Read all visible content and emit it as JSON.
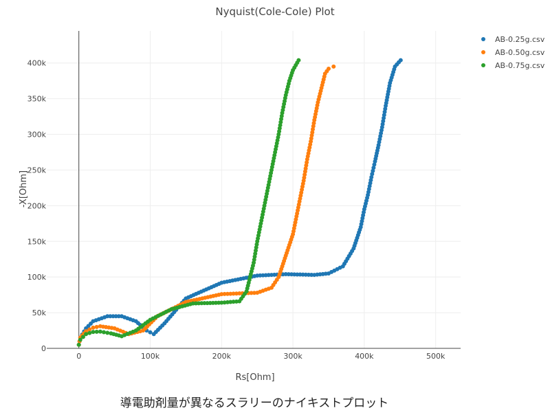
{
  "caption": "導電助剤量が異なるスラリーのナイキストプロット",
  "chart_data": {
    "type": "scatter",
    "title": "Nyquist(Cole-Cole) Plot",
    "xlabel": "Rs[Ohm]",
    "ylabel": "-X[Ohm]",
    "xlim": [
      -45000,
      535000
    ],
    "ylim": [
      0,
      445000
    ],
    "x_ticks": [
      0,
      100000,
      200000,
      300000,
      400000,
      500000
    ],
    "x_tick_labels": [
      "0",
      "100k",
      "200k",
      "300k",
      "400k",
      "500k"
    ],
    "y_ticks": [
      0,
      50000,
      100000,
      150000,
      200000,
      250000,
      300000,
      350000,
      400000
    ],
    "y_tick_labels": [
      "0",
      "50k",
      "100k",
      "150k",
      "200k",
      "250k",
      "300k",
      "350k",
      "400k"
    ],
    "grid": true,
    "legend_position": "top-right",
    "series": [
      {
        "name": "AB-0.25g.csv",
        "color": "#1f77b4",
        "x": [
          0,
          2000,
          10000,
          20000,
          40000,
          60000,
          80000,
          95000,
          105000,
          120000,
          150000,
          200000,
          250000,
          290000,
          330000,
          350000,
          370000,
          385000,
          395000,
          400000,
          405000,
          410000,
          415000,
          420000,
          425000,
          430000,
          436000,
          443000,
          451000
        ],
        "y": [
          5000,
          15000,
          28000,
          38000,
          45000,
          45000,
          38000,
          25000,
          20000,
          35000,
          70000,
          92000,
          102000,
          104000,
          103000,
          105000,
          115000,
          140000,
          170000,
          195000,
          215000,
          240000,
          262000,
          285000,
          310000,
          340000,
          372000,
          395000,
          404000
        ]
      },
      {
        "name": "AB-0.50g.csv",
        "color": "#ff7f0e",
        "x": [
          0,
          2000,
          10000,
          20000,
          30000,
          50000,
          70000,
          90000,
          110000,
          150000,
          200000,
          250000,
          270000,
          280000,
          290000,
          300000,
          305000,
          310000,
          315000,
          320000,
          325000,
          330000,
          335000,
          340000,
          345000,
          350000,
          357000
        ],
        "y": [
          5000,
          15000,
          24000,
          29000,
          31000,
          28000,
          20000,
          25000,
          45000,
          65000,
          76000,
          78000,
          85000,
          100000,
          130000,
          160000,
          185000,
          210000,
          235000,
          265000,
          290000,
          320000,
          345000,
          365000,
          385000,
          392000,
          395000
        ]
      },
      {
        "name": "AB-0.75g.csv",
        "color": "#2ca02c",
        "x": [
          0,
          2000,
          10000,
          20000,
          30000,
          45000,
          60000,
          80000,
          100000,
          130000,
          160000,
          200000,
          225000,
          235000,
          245000,
          250000,
          255000,
          260000,
          265000,
          270000,
          275000,
          280000,
          285000,
          290000,
          295000,
          300000,
          308000
        ],
        "y": [
          5000,
          12000,
          20000,
          23000,
          23500,
          21000,
          17000,
          25000,
          40000,
          55000,
          63000,
          64000,
          66000,
          80000,
          120000,
          150000,
          175000,
          200000,
          225000,
          250000,
          275000,
          300000,
          330000,
          355000,
          375000,
          390000,
          404000
        ]
      }
    ]
  }
}
